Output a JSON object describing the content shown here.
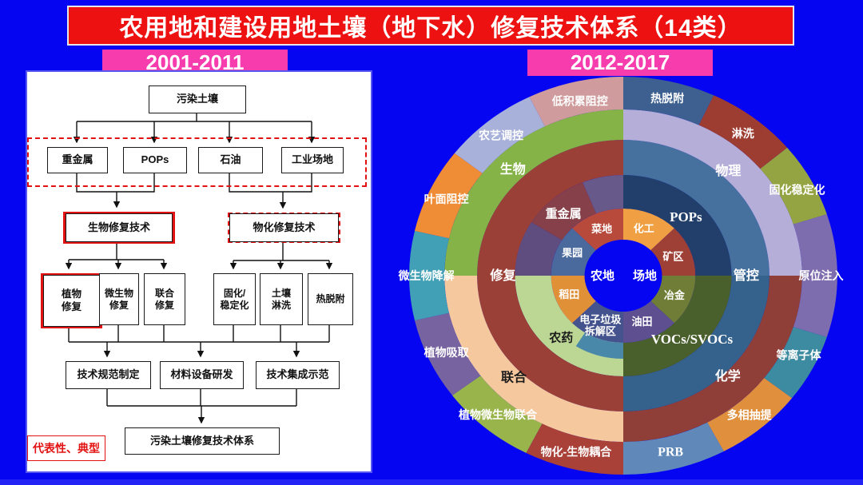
{
  "slide": {
    "background": "#0505f2"
  },
  "title": {
    "text": "农用地和建设用地土壤（地下水）修复技术体系（14类）",
    "bg": "#ee1111",
    "fg": "#ffffff"
  },
  "left_panel": {
    "period": "2001-2011",
    "period_bg": "#f73cae",
    "note": "代表性、典型",
    "note_color": "#e31212",
    "flowchart": {
      "root": "污染土壤",
      "contaminants": [
        "重金属",
        "POPs",
        "石油",
        "工业场地"
      ],
      "bio_branch": "生物修复技术",
      "physchem_branch": "物化修复技术",
      "bio_methods": [
        "植物\n修复",
        "微生物\n修复",
        "联合\n修复"
      ],
      "physchem_methods": [
        "固化/\n稳定化",
        "土壤\n淋洗",
        "热脱附"
      ],
      "programs": [
        "技术规范制定",
        "材料设备研发",
        "技术集成示范"
      ],
      "final": "污染土壤修复技术体系"
    }
  },
  "right_panel": {
    "period": "2012-2017",
    "period_bg": "#f73cae",
    "sunburst": {
      "center_color": "#0505f2",
      "center_labels": [
        "农地",
        "场地"
      ],
      "rings": [
        {
          "name": "land-use",
          "r0": 45,
          "r1": 84,
          "fontSize": 13,
          "segments": [
            {
              "label": "化工",
              "a0": 0,
              "a1": 45,
              "color": "#f0a043",
              "labelAt": 22,
              "labelR": 64
            },
            {
              "label": "矿区",
              "a0": 45,
              "a1": 90,
              "color": "#9e4036",
              "labelAt": 67,
              "labelR": 63
            },
            {
              "label": "冶金",
              "a0": 90,
              "a1": 135,
              "color": "#707d36",
              "labelAt": 112,
              "labelR": 64
            },
            {
              "label": "油田",
              "a0": 135,
              "a1": 180,
              "color": "#5d4f90",
              "labelAt": 159,
              "labelR": 61
            },
            {
              "label": "电子垃圾\n拆解区",
              "a0": 180,
              "a1": 225,
              "color": "#44538d",
              "labelAt": 203,
              "labelR": 68
            },
            {
              "label": "稻田",
              "a0": 225,
              "a1": 270,
              "color": "#e09037",
              "labelAt": 250,
              "labelR": 67
            },
            {
              "label": "果园",
              "a0": 270,
              "a1": 315,
              "color": "#4a6a9e",
              "labelAt": 296,
              "labelR": 66
            },
            {
              "label": "菜地",
              "a0": 315,
              "a1": 360,
              "color": "#b84a3c",
              "labelAt": 337,
              "labelR": 64
            }
          ]
        },
        {
          "name": "contaminant",
          "r0": 84,
          "r1": 126,
          "fontSize": 15,
          "segments": [
            {
              "label": "POPs",
              "a0": 0,
              "a1": 90,
              "color": "#223f6b",
              "labelAt": 45,
              "labelR": 103,
              "fs": 17,
              "serif": true
            },
            {
              "label": "VOCs/SVOCs",
              "a0": 90,
              "a1": 180,
              "color": "#49602c",
              "labelAt": 135,
              "labelR": 113,
              "fs": 17,
              "serif": true
            },
            {
              "label": "农药",
              "a0": 180,
              "a1": 270,
              "color": "#bcd794",
              "labelAt": 223,
              "labelR": 106,
              "labelColor": "#1b1b1b"
            },
            {
              "label": "",
              "a0": 180,
              "a1": 212,
              "r0": 84,
              "r1": 104,
              "color": "#4a88aa"
            },
            {
              "label": "",
              "a0": 270,
              "a1": 302,
              "color": "#5e4d7e"
            },
            {
              "label": "重金属",
              "a0": 302,
              "a1": 338,
              "color": "#854049",
              "labelAt": 318,
              "labelR": 104
            },
            {
              "label": "",
              "a0": 338,
              "a1": 360,
              "color": "#68598b"
            }
          ]
        },
        {
          "name": "strategy",
          "r0": 126,
          "r1": 170,
          "fontSize": 16,
          "segments": [
            {
              "label": "管控",
              "a0": 0,
              "a1": 90,
              "color": "#46719e",
              "labelAt": 90,
              "labelR": 143
            },
            {
              "label": "",
              "a0": 90,
              "a1": 180,
              "color": "#34628c"
            },
            {
              "label": "修复",
              "a0": 180,
              "a1": 360,
              "color": "#9b4037",
              "labelAt": 270,
              "labelR": 140
            }
          ]
        },
        {
          "name": "method-class",
          "r0": 170,
          "r1": 208,
          "fontSize": 16,
          "segments": [
            {
              "label": "物理",
              "a0": 0,
              "a1": 90,
              "color": "#b5aed9",
              "labelAt": 43,
              "labelR": 179
            },
            {
              "label": "化学",
              "a0": 90,
              "a1": 180,
              "color": "#8f3e38",
              "labelAt": 136,
              "labelR": 175
            },
            {
              "label": "联合",
              "a0": 180,
              "a1": 270,
              "color": "#f5c89d",
              "labelAt": 225,
              "labelR": 180,
              "labelColor": "#1b1b1b"
            },
            {
              "label": "生物",
              "a0": 270,
              "a1": 360,
              "color": "#85b348",
              "labelAt": 316,
              "labelR": 185
            }
          ]
        },
        {
          "name": "technique",
          "r0": 208,
          "r1": 249,
          "fontSize": 14,
          "segments": [
            {
              "label": "热脱附",
              "a0": 0,
              "a1": 25,
              "color": "#3d6090",
              "labelAt": 13,
              "labelR": 228
            },
            {
              "label": "淋洗",
              "a0": 25,
              "a1": 50,
              "color": "#9d3d32",
              "labelAt": 38,
              "labelR": 226
            },
            {
              "label": "固化稳定化",
              "a0": 50,
              "a1": 72,
              "color": "#95a442",
              "labelAt": 62,
              "labelR": 229
            },
            {
              "label": "原位注入",
              "a0": 72,
              "a1": 108,
              "color": "#7e6dae",
              "labelAt": 90,
              "labelR": 230
            },
            {
              "label": "等离子体",
              "a0": 108,
              "a1": 128,
              "color": "#3d8ba0",
              "labelAt": 116,
              "labelR": 227
            },
            {
              "label": "多相抽提",
              "a0": 128,
              "a1": 152,
              "color": "#e0903c",
              "labelAt": 140,
              "labelR": 228
            },
            {
              "label": "PRB",
              "a0": 152,
              "a1": 180,
              "color": "#6089ba",
              "labelAt": 166,
              "labelR": 227,
              "fs": 16,
              "serif": true
            },
            {
              "label": "物化-生物耦合",
              "a0": 180,
              "a1": 207,
              "color": "#a94138",
              "labelAt": 194,
              "labelR": 227
            },
            {
              "label": "植物微生物联合",
              "a0": 207,
              "a1": 233,
              "color": "#98b44b",
              "labelAt": 220,
              "labelR": 227
            },
            {
              "label": "植物吸取",
              "a0": 233,
              "a1": 257,
              "color": "#77639f",
              "labelAt": 245,
              "labelR": 227
            },
            {
              "label": "微生物降解",
              "a0": 257,
              "a1": 283,
              "color": "#42a0b6",
              "labelAt": 270,
              "labelR": 229
            },
            {
              "label": "叶面阻控",
              "a0": 283,
              "a1": 308,
              "color": "#ee8d35",
              "labelAt": 295,
              "labelR": 227
            },
            {
              "label": "农艺调控",
              "a0": 308,
              "a1": 334,
              "color": "#a7b1d9",
              "labelAt": 321,
              "labelR": 226
            },
            {
              "label": "低积累阻控",
              "a0": 334,
              "a1": 360,
              "color": "#d09b9c",
              "labelAt": 347,
              "labelR": 224
            }
          ]
        }
      ]
    }
  }
}
